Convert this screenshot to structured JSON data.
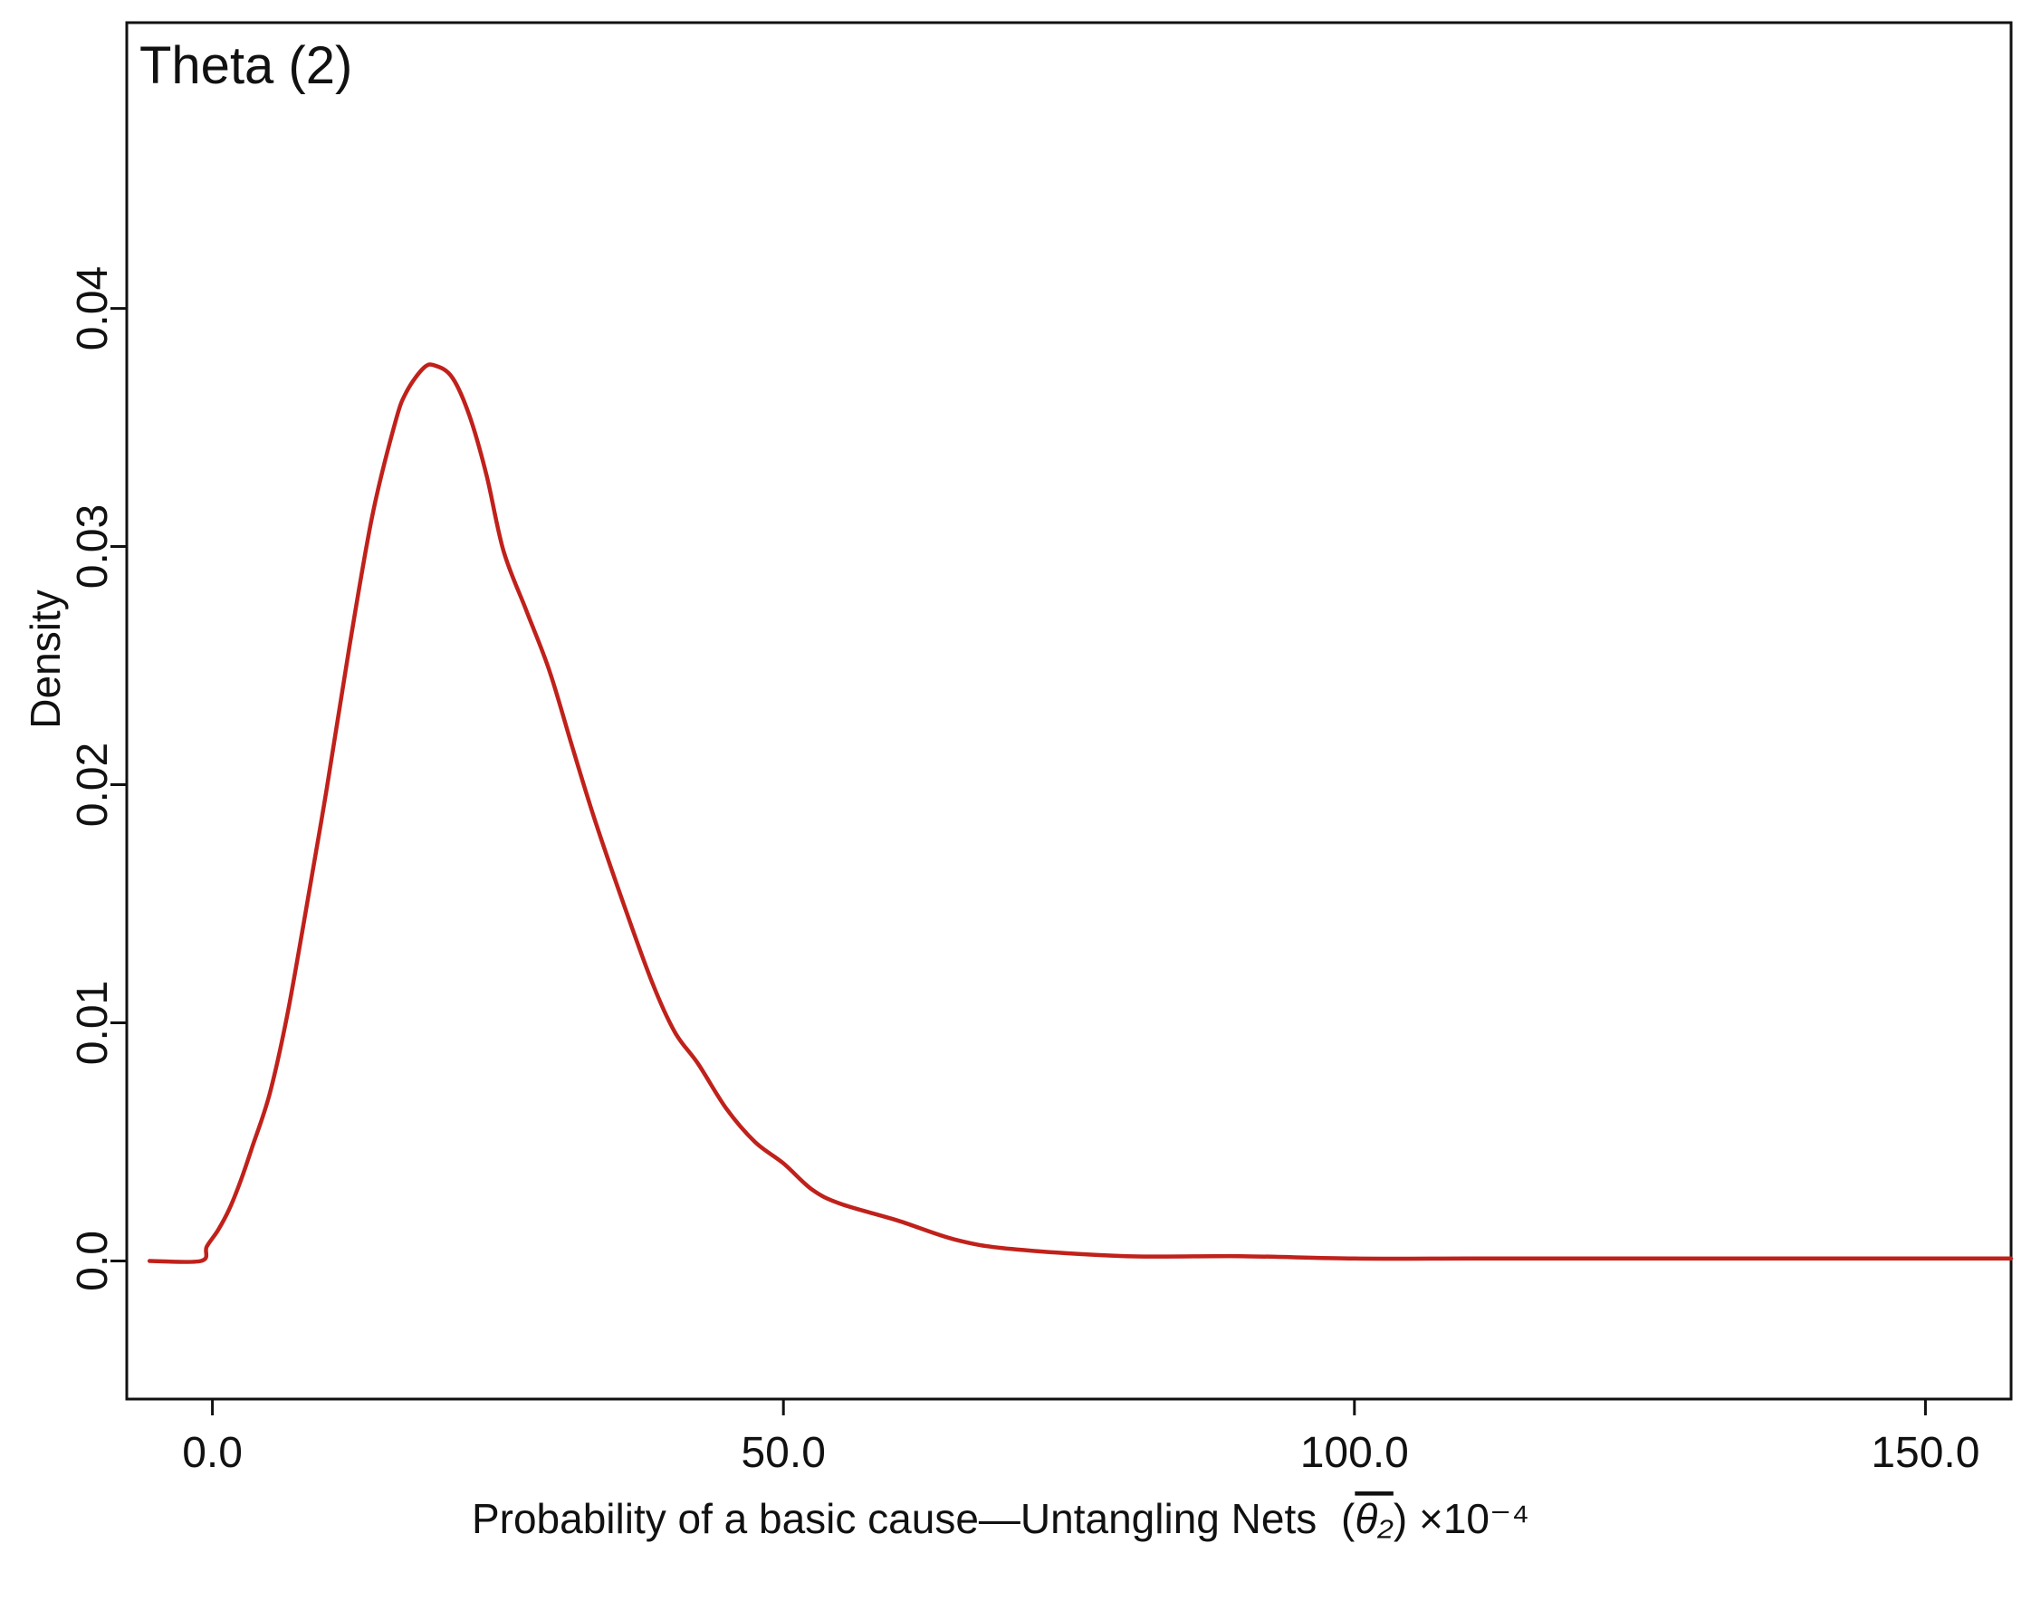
{
  "chart_data": {
    "type": "line",
    "title": "Theta (2)",
    "xlabel": "Probability of a basic cause—Untangling Nets",
    "xlabel_symbol": "θ₂",
    "xlabel_scale": "×10⁻⁴",
    "ylabel": "Density",
    "xlim": [
      -7.5,
      157.5
    ],
    "ylim": [
      -0.0058,
      0.052
    ],
    "x_ticks": [
      0,
      50,
      100,
      150
    ],
    "x_tick_labels": [
      "0.0",
      "50.0",
      "100.0",
      "150.0"
    ],
    "y_ticks": [
      0,
      0.01,
      0.02,
      0.03,
      0.04
    ],
    "y_tick_labels": [
      "0.0",
      "0.01",
      "0.02",
      "0.03",
      "0.04"
    ],
    "grid": false,
    "series": [
      {
        "color": "#c0211b",
        "x": [
          -5.5,
          -1,
          -0.5,
          0.5,
          1.5,
          2.5,
          3.5,
          5,
          6.5,
          8,
          10,
          12,
          14,
          16,
          17,
          18.5,
          19.5,
          21,
          22.5,
          24,
          25.5,
          27.5,
          29.5,
          31.5,
          33.5,
          36,
          38.5,
          40.5,
          42.5,
          45,
          47.5,
          50,
          52.5,
          55,
          60,
          65,
          70,
          80,
          90,
          100,
          110,
          120,
          130,
          140,
          150,
          157.5
        ],
        "y": [
          0,
          0,
          0.0006,
          0.0013,
          0.0022,
          0.0034,
          0.0048,
          0.007,
          0.0102,
          0.0142,
          0.0198,
          0.0258,
          0.0313,
          0.0352,
          0.0365,
          0.0375,
          0.0376,
          0.0371,
          0.0355,
          0.033,
          0.0298,
          0.0273,
          0.0248,
          0.0216,
          0.0185,
          0.015,
          0.0117,
          0.0096,
          0.0083,
          0.0064,
          0.005,
          0.0041,
          0.003,
          0.0024,
          0.0017,
          0.0009,
          0.0005,
          0.0002,
          0.0002,
          0.0001,
          0.0001,
          0.0001,
          0.0001,
          0.0001,
          0.0001,
          0.0001
        ]
      }
    ]
  }
}
